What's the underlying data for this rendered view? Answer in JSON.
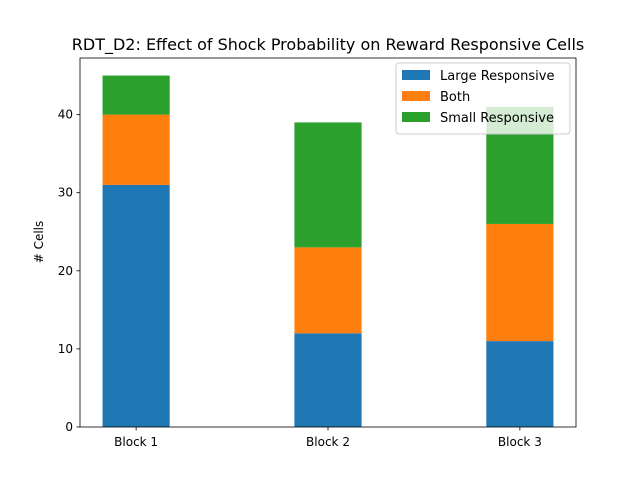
{
  "chart_data": {
    "type": "bar",
    "stacked": true,
    "title": "RDT_D2: Effect of Shock Probability on Reward Responsive Cells",
    "xlabel": "",
    "ylabel": "# Cells",
    "categories": [
      "Block 1",
      "Block 2",
      "Block 3"
    ],
    "series": [
      {
        "name": "Large Responsive",
        "values": [
          31,
          12,
          11
        ],
        "color": "#1f77b4"
      },
      {
        "name": "Both",
        "values": [
          9,
          11,
          15
        ],
        "color": "#ff7f0e"
      },
      {
        "name": "Small Responsive",
        "values": [
          5,
          16,
          15
        ],
        "color": "#2ca02c"
      }
    ],
    "ylim": [
      0,
      47.25
    ],
    "yticks": [
      0,
      10,
      20,
      30,
      40
    ],
    "grid": false,
    "legend_position": "top-right"
  }
}
